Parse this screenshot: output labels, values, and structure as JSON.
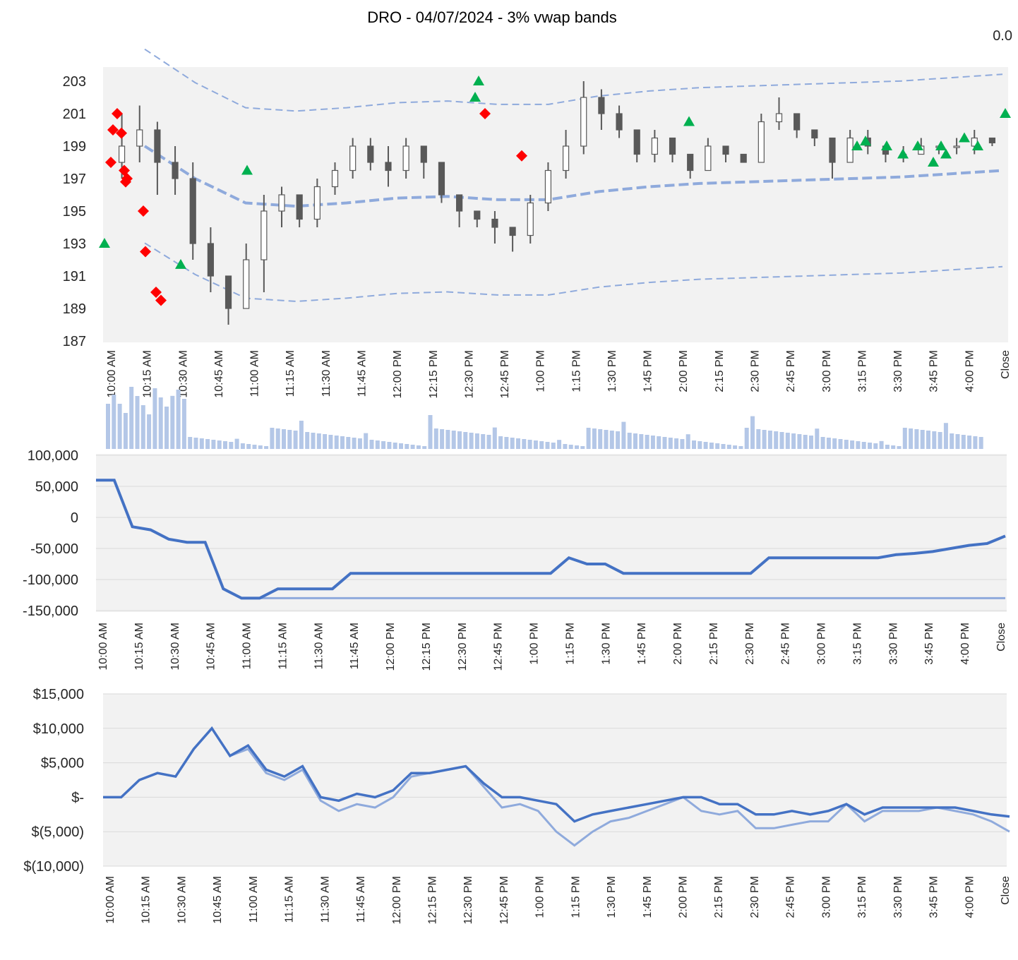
{
  "title": "DRO - 04/07/2024 - 3% vwap bands",
  "corner_value": "0.0",
  "x_labels": [
    "10:00 AM",
    "10:15 AM",
    "10:30 AM",
    "10:45 AM",
    "11:00 AM",
    "11:15 AM",
    "11:30 AM",
    "11:45 AM",
    "12:00 PM",
    "12:15 PM",
    "12:30 PM",
    "12:45 PM",
    "1:00 PM",
    "1:15 PM",
    "1:30 PM",
    "1:45 PM",
    "2:00 PM",
    "2:15 PM",
    "2:30 PM",
    "2:45 PM",
    "3:00 PM",
    "3:15 PM",
    "3:30 PM",
    "3:45 PM",
    "4:00 PM",
    "Close"
  ],
  "colors": {
    "plot_bg": "#f2f2f2",
    "gridline": "#d9d9d9",
    "candle": "#595959",
    "band": "#8faadc",
    "volume": "#b4c7e7",
    "position": "#4472c4",
    "position_light": "#8faadc",
    "buy": "#00b050",
    "sell": "#ff0000"
  },
  "chart_data": [
    {
      "type": "candlestick",
      "name": "price",
      "ylim": [
        187,
        203
      ],
      "y_ticks": [
        "203",
        "201",
        "199",
        "197",
        "195",
        "193",
        "191",
        "189",
        "187"
      ],
      "candles_approx": [
        [
          0,
          198,
          201,
          197,
          199
        ],
        [
          1,
          199,
          201.5,
          198,
          200
        ],
        [
          2,
          200,
          200.5,
          196,
          198
        ],
        [
          3,
          198,
          199,
          196,
          197
        ],
        [
          4,
          197,
          198,
          192,
          193
        ],
        [
          5,
          193,
          194,
          190,
          191
        ],
        [
          6,
          191,
          191,
          188,
          189
        ],
        [
          7,
          189,
          193,
          189,
          192
        ],
        [
          8,
          192,
          196,
          190,
          195
        ],
        [
          9,
          195,
          196.5,
          194,
          196
        ],
        [
          10,
          196,
          196,
          194,
          194.5
        ],
        [
          11,
          194.5,
          197,
          194,
          196.5
        ],
        [
          12,
          196.5,
          198,
          196,
          197.5
        ],
        [
          13,
          197.5,
          199.5,
          197,
          199
        ],
        [
          14,
          199,
          199.5,
          197.5,
          198
        ],
        [
          15,
          198,
          199,
          196.5,
          197.5
        ],
        [
          16,
          197.5,
          199.5,
          197,
          199
        ],
        [
          17,
          199,
          199,
          197,
          198
        ],
        [
          18,
          198,
          198,
          195.5,
          196
        ],
        [
          19,
          196,
          196,
          194,
          195
        ],
        [
          20,
          195,
          195,
          194,
          194.5
        ],
        [
          21,
          194.5,
          195,
          193,
          194
        ],
        [
          22,
          194,
          194,
          192.5,
          193.5
        ],
        [
          23,
          193.5,
          196,
          193,
          195.5
        ],
        [
          24,
          195.5,
          198,
          195,
          197.5
        ],
        [
          25,
          197.5,
          200,
          197,
          199
        ],
        [
          26,
          199,
          203,
          198.5,
          202
        ],
        [
          27,
          202,
          202.5,
          200,
          201
        ],
        [
          28,
          201,
          201.5,
          199.5,
          200
        ],
        [
          29,
          200,
          200,
          198,
          198.5
        ],
        [
          30,
          198.5,
          200,
          198,
          199.5
        ],
        [
          31,
          199.5,
          199.5,
          198,
          198.5
        ],
        [
          32,
          198.5,
          198.5,
          197,
          197.5
        ],
        [
          33,
          197.5,
          199.5,
          197.5,
          199
        ],
        [
          34,
          199,
          199,
          198,
          198.5
        ],
        [
          35,
          198.5,
          198.5,
          198,
          198
        ],
        [
          36,
          198,
          201,
          198,
          200.5
        ],
        [
          37,
          200.5,
          202,
          200,
          201
        ],
        [
          38,
          201,
          201,
          199.5,
          200
        ],
        [
          39,
          200,
          200,
          199,
          199.5
        ],
        [
          40,
          199.5,
          199.5,
          197,
          198
        ],
        [
          41,
          198,
          200,
          198,
          199.5
        ],
        [
          42,
          199.5,
          200,
          198.5,
          199
        ],
        [
          43,
          199,
          199,
          198,
          198.5
        ],
        [
          44,
          198.5,
          199,
          198,
          198.5
        ],
        [
          45,
          198.5,
          199.5,
          198.5,
          199
        ],
        [
          46,
          199,
          199,
          198.5,
          199
        ],
        [
          47,
          199,
          199.5,
          198.5,
          199
        ],
        [
          48,
          199,
          200,
          198.5,
          199.5
        ],
        [
          49,
          199.5,
          199.5,
          199,
          199.2
        ]
      ],
      "vwap_approx": [
        199,
        197,
        195.5,
        195.3,
        195.5,
        195.8,
        195.9,
        195.7,
        195.7,
        196.2,
        196.5,
        196.7,
        196.8,
        196.9,
        197,
        197.1,
        197.3,
        197.5
      ],
      "buy_markers": [
        "193",
        "197.5",
        "191.7",
        "203",
        "202",
        "200.5",
        "199",
        "199.3",
        "199",
        "198.5",
        "199",
        "198",
        "199",
        "198.5",
        "199.5",
        "199",
        "201"
      ],
      "sell_markers": [
        "198",
        "200",
        "201",
        "199.8",
        "197.5",
        "197",
        "196.8",
        "195",
        "192.5",
        "190",
        "189.5",
        "201",
        "198.4"
      ]
    },
    {
      "type": "line",
      "name": "position",
      "ylim": [
        -150000,
        100000
      ],
      "y_ticks": [
        "100,000",
        "50,000",
        "0",
        "-50,000",
        "-100,000",
        "-150,000"
      ],
      "series_approx": [
        [
          0,
          60000
        ],
        [
          1,
          60000
        ],
        [
          2,
          -15000
        ],
        [
          3,
          -20000
        ],
        [
          4,
          -35000
        ],
        [
          5,
          -40000
        ],
        [
          6,
          -40000
        ],
        [
          7,
          -115000
        ],
        [
          8,
          -130000
        ],
        [
          9,
          -130000
        ],
        [
          10,
          -115000
        ],
        [
          11,
          -115000
        ],
        [
          12,
          -115000
        ],
        [
          13,
          -115000
        ],
        [
          14,
          -90000
        ],
        [
          15,
          -90000
        ],
        [
          16,
          -90000
        ],
        [
          17,
          -90000
        ],
        [
          18,
          -90000
        ],
        [
          19,
          -90000
        ],
        [
          20,
          -90000
        ],
        [
          21,
          -90000
        ],
        [
          22,
          -90000
        ],
        [
          23,
          -90000
        ],
        [
          24,
          -90000
        ],
        [
          25,
          -90000
        ],
        [
          26,
          -65000
        ],
        [
          27,
          -75000
        ],
        [
          28,
          -75000
        ],
        [
          29,
          -90000
        ],
        [
          30,
          -90000
        ],
        [
          31,
          -90000
        ],
        [
          32,
          -90000
        ],
        [
          33,
          -90000
        ],
        [
          34,
          -90000
        ],
        [
          35,
          -90000
        ],
        [
          36,
          -90000
        ],
        [
          37,
          -65000
        ],
        [
          38,
          -65000
        ],
        [
          39,
          -65000
        ],
        [
          40,
          -65000
        ],
        [
          41,
          -65000
        ],
        [
          42,
          -65000
        ],
        [
          43,
          -65000
        ],
        [
          44,
          -60000
        ],
        [
          45,
          -58000
        ],
        [
          46,
          -55000
        ],
        [
          47,
          -50000
        ],
        [
          48,
          -45000
        ],
        [
          49,
          -42000
        ],
        [
          50,
          -30000
        ]
      ],
      "floor_approx": -130000
    },
    {
      "type": "line",
      "name": "pnl",
      "ylim": [
        -10000,
        15000
      ],
      "y_ticks": [
        "$15,000",
        "$10,000",
        "$5,000",
        "$-",
        "$(5,000)",
        "$(10,000)"
      ],
      "series_approx": [
        [
          0,
          0
        ],
        [
          1,
          0
        ],
        [
          2,
          2500
        ],
        [
          3,
          3500
        ],
        [
          4,
          3000
        ],
        [
          5,
          7000
        ],
        [
          6,
          10000
        ],
        [
          7,
          6000
        ],
        [
          8,
          7500
        ],
        [
          9,
          4000
        ],
        [
          10,
          3000
        ],
        [
          11,
          4500
        ],
        [
          12,
          0
        ],
        [
          13,
          -500
        ],
        [
          14,
          500
        ],
        [
          15,
          0
        ],
        [
          16,
          1000
        ],
        [
          17,
          3500
        ],
        [
          18,
          3500
        ],
        [
          19,
          4000
        ],
        [
          20,
          4500
        ],
        [
          21,
          2000
        ],
        [
          22,
          0
        ],
        [
          23,
          0
        ],
        [
          24,
          -500
        ],
        [
          25,
          -1000
        ],
        [
          26,
          -3500
        ],
        [
          27,
          -2500
        ],
        [
          28,
          -2000
        ],
        [
          29,
          -1500
        ],
        [
          30,
          -1000
        ],
        [
          31,
          -500
        ],
        [
          32,
          0
        ],
        [
          33,
          0
        ],
        [
          34,
          -1000
        ],
        [
          35,
          -1000
        ],
        [
          36,
          -2500
        ],
        [
          37,
          -2500
        ],
        [
          38,
          -2000
        ],
        [
          39,
          -2500
        ],
        [
          40,
          -2000
        ],
        [
          41,
          -1000
        ],
        [
          42,
          -2500
        ],
        [
          43,
          -1500
        ],
        [
          44,
          -1500
        ],
        [
          45,
          -1500
        ],
        [
          46,
          -1500
        ],
        [
          47,
          -1500
        ],
        [
          48,
          -2000
        ],
        [
          49,
          -2500
        ],
        [
          50,
          -2800
        ]
      ],
      "series_light_approx": [
        [
          0,
          0
        ],
        [
          1,
          0
        ],
        [
          2,
          2500
        ],
        [
          3,
          3500
        ],
        [
          4,
          3000
        ],
        [
          5,
          7000
        ],
        [
          6,
          10000
        ],
        [
          7,
          6000
        ],
        [
          8,
          7000
        ],
        [
          9,
          3500
        ],
        [
          10,
          2500
        ],
        [
          11,
          4000
        ],
        [
          12,
          -500
        ],
        [
          13,
          -2000
        ],
        [
          14,
          -1000
        ],
        [
          15,
          -1500
        ],
        [
          16,
          0
        ],
        [
          17,
          3000
        ],
        [
          18,
          3500
        ],
        [
          19,
          4000
        ],
        [
          20,
          4500
        ],
        [
          21,
          1500
        ],
        [
          22,
          -1500
        ],
        [
          23,
          -1000
        ],
        [
          24,
          -2000
        ],
        [
          25,
          -5000
        ],
        [
          26,
          -7000
        ],
        [
          27,
          -5000
        ],
        [
          28,
          -3500
        ],
        [
          29,
          -3000
        ],
        [
          30,
          -2000
        ],
        [
          31,
          -1000
        ],
        [
          32,
          0
        ],
        [
          33,
          -2000
        ],
        [
          34,
          -2500
        ],
        [
          35,
          -2000
        ],
        [
          36,
          -4500
        ],
        [
          37,
          -4500
        ],
        [
          38,
          -4000
        ],
        [
          39,
          -3500
        ],
        [
          40,
          -3500
        ],
        [
          41,
          -1000
        ],
        [
          42,
          -3500
        ],
        [
          43,
          -2000
        ],
        [
          44,
          -2000
        ],
        [
          45,
          -2000
        ],
        [
          46,
          -1500
        ],
        [
          47,
          -2000
        ],
        [
          48,
          -2500
        ],
        [
          49,
          -3500
        ],
        [
          50,
          -5000
        ]
      ]
    }
  ]
}
